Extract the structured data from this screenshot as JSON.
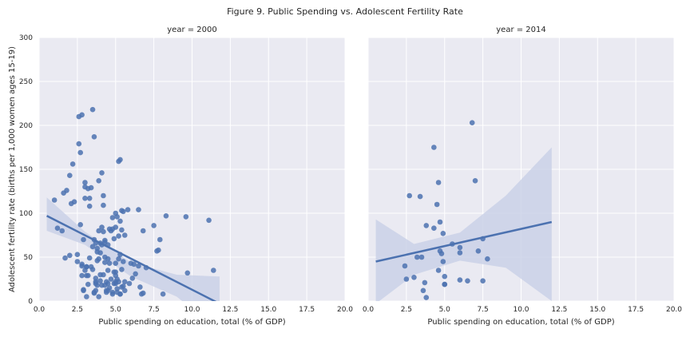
{
  "figure_title": "Figure 9. Public Spending vs. Adolescent Fertility Rate",
  "colors": {
    "panel_bg": "#EAEAF2",
    "grid": "#FFFFFF",
    "point": "#4C72B0",
    "line": "#4C72B0",
    "band": "#C8D0E6"
  },
  "chart_data": [
    {
      "type": "scatter",
      "title": "year = 2000",
      "xlabel": "Public spending on education, total (% of GDP)",
      "ylabel": "Adolescent fertility rate (births per 1,000 women ages 15-19)",
      "xlim": [
        0,
        20
      ],
      "ylim": [
        0,
        300
      ],
      "xticks": [
        "0.0",
        "2.5",
        "5.0",
        "7.5",
        "10.0",
        "12.5",
        "15.0",
        "17.5",
        "20.0"
      ],
      "yticks": [
        "0",
        "50",
        "100",
        "150",
        "200",
        "250",
        "300"
      ],
      "grid": true,
      "x": [
        1.0,
        1.2,
        1.5,
        1.6,
        1.7,
        1.8,
        2.0,
        2.0,
        2.1,
        2.2,
        2.3,
        2.5,
        2.6,
        2.7,
        2.7,
        2.8,
        2.8,
        2.9,
        3.0,
        3.0,
        3.1,
        3.2,
        3.2,
        3.3,
        3.3,
        3.4,
        3.5,
        3.6,
        3.8,
        3.9,
        4.0,
        4.1,
        4.1,
        4.2,
        4.2,
        4.3,
        4.5,
        4.6,
        4.6,
        4.7,
        4.8,
        4.9,
        5.0,
        5.0,
        5.0,
        5.1,
        5.2,
        5.3,
        5.3,
        5.4,
        5.4,
        5.5,
        5.6,
        5.8,
        5.9,
        6.0,
        6.1,
        6.2,
        6.3,
        6.5,
        6.6,
        6.7,
        7.0,
        7.5,
        7.7,
        7.8,
        7.9,
        8.1,
        8.3,
        9.6,
        9.7,
        11.1,
        11.4,
        2.5,
        2.6,
        2.8,
        3.0,
        3.1,
        3.5,
        3.6,
        3.7,
        3.7,
        3.8,
        3.9,
        4.0,
        4.2,
        4.3,
        4.3,
        4.5,
        4.5,
        4.7,
        4.8,
        5.0,
        5.1,
        5.2,
        5.3,
        5.4,
        5.5,
        5.6,
        6.5,
        6.8,
        2.8,
        2.9,
        3.1,
        3.2,
        3.3,
        3.5,
        3.6,
        3.7,
        3.8,
        3.9,
        4.0,
        4.1,
        4.3,
        4.3,
        4.4,
        4.5,
        4.6,
        4.8,
        4.9,
        5.0,
        5.0,
        5.1,
        5.2,
        5.3,
        5.5,
        5.6,
        6.8,
        2.9,
        3.0,
        3.1,
        3.4,
        3.6,
        3.7,
        3.8,
        3.9,
        4.0,
        4.2,
        4.4,
        4.5,
        4.9,
        5.1,
        5.3,
        5.4,
        3.7,
        4.1,
        4.4,
        4.8,
        5.0,
        5.2
      ],
      "y": [
        115,
        83,
        80,
        123,
        49,
        126,
        52,
        143,
        111,
        156,
        113,
        53,
        179,
        87,
        169,
        42,
        212,
        70,
        135,
        117,
        39,
        128,
        29,
        117,
        108,
        129,
        36,
        70,
        60,
        137,
        55,
        146,
        84,
        109,
        79,
        50,
        35,
        82,
        43,
        25,
        95,
        33,
        84,
        43,
        100,
        96,
        159,
        161,
        53,
        81,
        103,
        102,
        75,
        104,
        20,
        43,
        26,
        42,
        31,
        40,
        16,
        8,
        38,
        86,
        57,
        58,
        70,
        8,
        97,
        96,
        32,
        92,
        35,
        45,
        210,
        40,
        130,
        39,
        218,
        187,
        66,
        22,
        56,
        48,
        66,
        120,
        69,
        44,
        20,
        64,
        80,
        82,
        29,
        25,
        48,
        91,
        16,
        45,
        12,
        104,
        80,
        29,
        13,
        29,
        19,
        49,
        62,
        9,
        20,
        46,
        80,
        23,
        64,
        18,
        67,
        10,
        48,
        15,
        8,
        71,
        20,
        22,
        14,
        22,
        8,
        17,
        22,
        9,
        12,
        35,
        5,
        39,
        10,
        26,
        18,
        5,
        30,
        30,
        12,
        12,
        20,
        10,
        8,
        36,
        12,
        18,
        22,
        10,
        33,
        74
      ],
      "regression": {
        "x": [
          0.5,
          11.8
        ],
        "y": [
          97,
          -3
        ]
      },
      "ci_band": {
        "x": [
          0.5,
          3.0,
          6.0,
          9.0,
          11.8
        ],
        "lower": [
          80,
          64,
          28,
          5,
          -35
        ],
        "upper": [
          118,
          79,
          44,
          30,
          28
        ]
      }
    },
    {
      "type": "scatter",
      "title": "year = 2014",
      "xlabel": "Public spending on education, total (% of GDP)",
      "ylabel": "",
      "xlim": [
        0,
        20
      ],
      "ylim": [
        0,
        300
      ],
      "xticks": [
        "0.0",
        "2.5",
        "5.0",
        "7.5",
        "10.0",
        "12.5",
        "15.0",
        "17.5",
        "20.0"
      ],
      "yticks": [
        "0",
        "50",
        "100",
        "150",
        "200",
        "250",
        "300"
      ],
      "grid": true,
      "x": [
        6.8,
        4.3,
        7.0,
        4.6,
        2.7,
        3.4,
        4.5,
        3.8,
        4.7,
        4.3,
        4.9,
        5.5,
        7.5,
        6.0,
        7.2,
        4.7,
        6.0,
        7.8,
        3.2,
        4.8,
        3.5,
        2.4,
        4.9,
        4.6,
        5.0,
        3.0,
        2.5,
        5.0,
        6.0,
        6.5,
        7.5,
        3.7,
        5.0,
        3.6,
        3.8
      ],
      "y": [
        203,
        175,
        137,
        135,
        120,
        119,
        110,
        86,
        90,
        83,
        77,
        65,
        71,
        61,
        57,
        57,
        55,
        48,
        50,
        54,
        50,
        40,
        45,
        35,
        28,
        27,
        25,
        19,
        24,
        23,
        23,
        21,
        19,
        12,
        4
      ],
      "regression": {
        "x": [
          0.5,
          12.0
        ],
        "y": [
          45,
          90
        ]
      },
      "ci_band": {
        "x": [
          0.5,
          3.0,
          6.0,
          9.0,
          12.0
        ],
        "lower": [
          -3,
          30,
          46,
          38,
          0
        ],
        "upper": [
          93,
          65,
          78,
          120,
          175
        ]
      }
    }
  ]
}
